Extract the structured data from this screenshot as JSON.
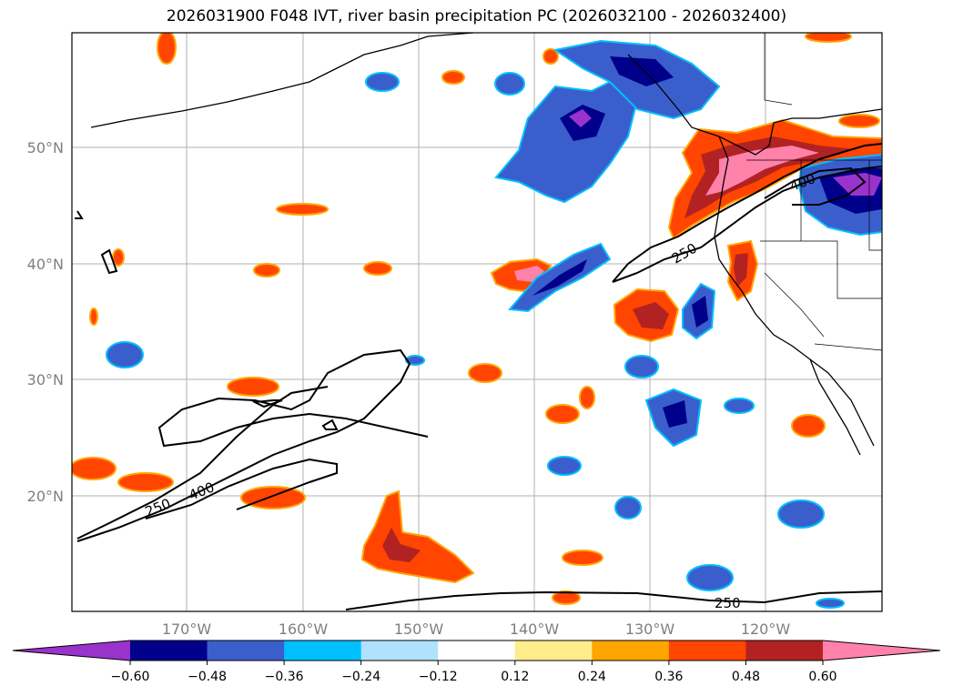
{
  "title": "2026031900 F048 IVT, river basin precipitation PC (2026032100 - 2026032400)",
  "map": {
    "projection": "PlateCarree",
    "lon_range": [
      180,
      -110
    ],
    "lat_range": [
      10,
      60
    ],
    "gridlines": true,
    "lat_labels": [
      "50°N",
      "40°N",
      "30°N",
      "20°N"
    ],
    "lon_labels": [
      "170°W",
      "160°W",
      "150°W",
      "140°W",
      "130°W",
      "120°W"
    ]
  },
  "ivt_contours": {
    "levels": [
      "250",
      "400"
    ],
    "inline_labels": [
      "250",
      "400",
      "250",
      "400",
      "250"
    ]
  },
  "colorbar": {
    "extend": "both",
    "tick_labels": [
      "−0.60",
      "−0.48",
      "−0.36",
      "−0.24",
      "−0.12",
      "0.12",
      "0.24",
      "0.36",
      "0.48",
      "0.60"
    ],
    "colors": [
      "#9933cc",
      "#00008b",
      "#3a5fcd",
      "#00bfff",
      "#b0e2ff",
      "#ffffff",
      "#ffec8b",
      "#ffa500",
      "#ff4500",
      "#b22222",
      "#ff82ab"
    ]
  },
  "chart_data": {
    "type": "heatmap",
    "title": "2026031900 F048 IVT, river basin precipitation PC (2026032100 - 2026032400)",
    "x_labels": [
      "170°W",
      "160°W",
      "150°W",
      "140°W",
      "130°W",
      "120°W"
    ],
    "y_labels": [
      "50°N",
      "40°N",
      "30°N",
      "20°N"
    ],
    "color_levels": [
      -0.6,
      -0.48,
      -0.36,
      -0.24,
      -0.12,
      0.12,
      0.24,
      0.36,
      0.48,
      0.6
    ],
    "contour_levels": [
      250,
      400
    ]
  }
}
